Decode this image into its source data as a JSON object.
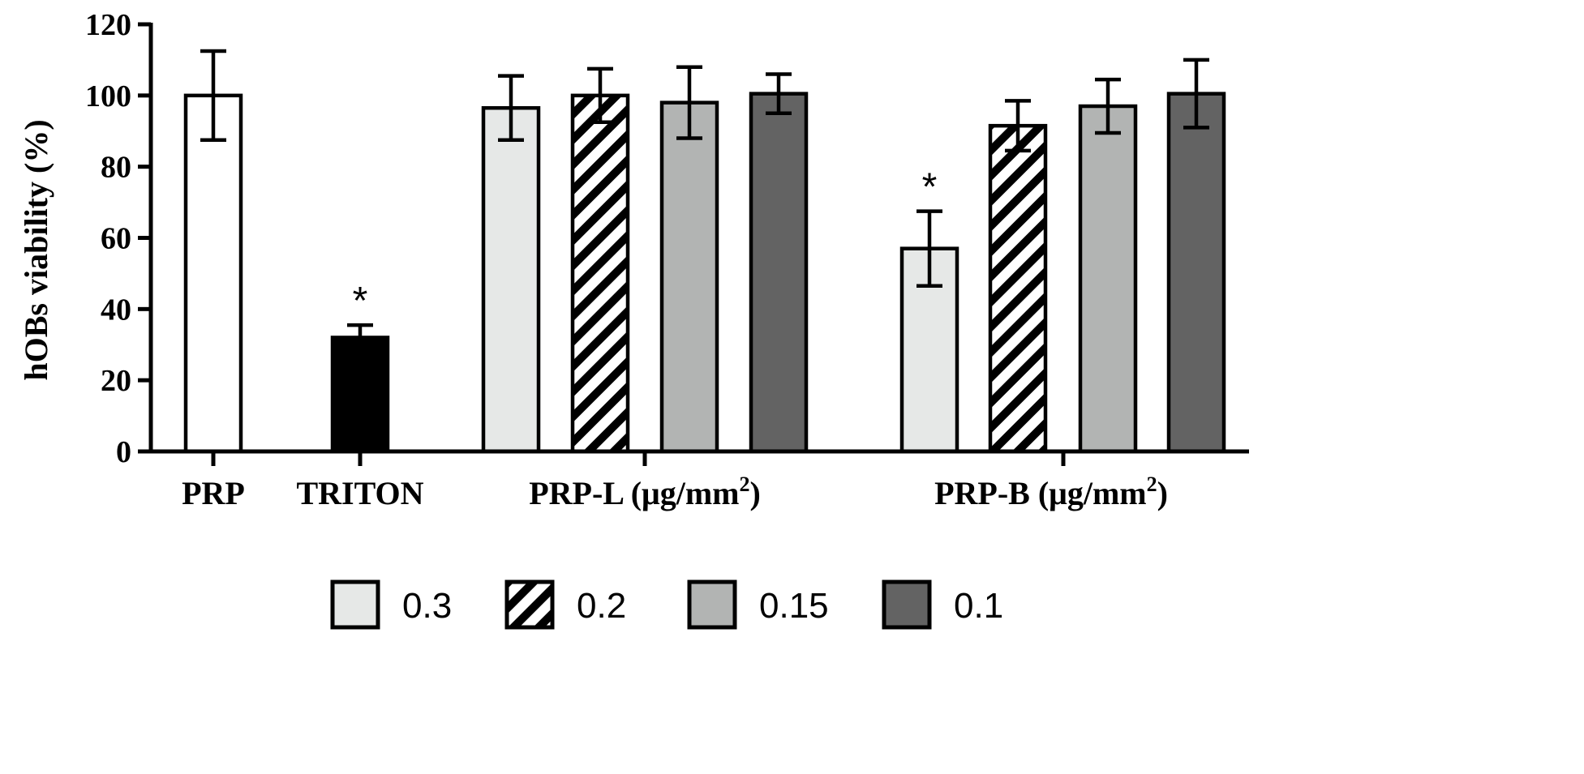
{
  "chart_data": {
    "type": "bar",
    "title": "",
    "xlabel": "",
    "ylabel": "hOBs viability (%)",
    "ylim": [
      0,
      120
    ],
    "yticks": [
      "0",
      "20",
      "40",
      "60",
      "80",
      "100",
      "120"
    ],
    "grid": false,
    "groups": [
      {
        "label": "PRP",
        "label_sup": "",
        "bars": [
          {
            "series": "PRP",
            "value": 100,
            "error": 12.5,
            "significant": false,
            "fill": "#ffffff",
            "pattern": "none"
          }
        ]
      },
      {
        "label": "TRITON",
        "label_sup": "",
        "bars": [
          {
            "series": "TRITON",
            "value": 32,
            "error": 3.5,
            "significant": true,
            "fill": "#000000",
            "pattern": "none"
          }
        ]
      },
      {
        "label": "PRP-L  (μg/mm",
        "label_sup": "2",
        "label_close": ")",
        "bars": [
          {
            "series": "0.3",
            "value": 96.5,
            "error": 9.0,
            "significant": false
          },
          {
            "series": "0.2",
            "value": 100,
            "error": 7.5,
            "significant": false
          },
          {
            "series": "0.15",
            "value": 98,
            "error": 10.0,
            "significant": false
          },
          {
            "series": "0.1",
            "value": 100.5,
            "error": 5.5,
            "significant": false
          }
        ]
      },
      {
        "label": "PRP-B (μg/mm",
        "label_sup": "2",
        "label_close": ")",
        "bars": [
          {
            "series": "0.3",
            "value": 57,
            "error": 10.5,
            "significant": true
          },
          {
            "series": "0.2",
            "value": 91.5,
            "error": 7.0,
            "significant": false
          },
          {
            "series": "0.15",
            "value": 97,
            "error": 7.5,
            "significant": false
          },
          {
            "series": "0.1",
            "value": 100.5,
            "error": 9.5,
            "significant": false
          }
        ]
      }
    ],
    "legend": {
      "position": "bottom",
      "entries": [
        {
          "label": "0.3",
          "fill": "#e6e8e7",
          "pattern": "none"
        },
        {
          "label": "0.2",
          "fill": "#ffffff",
          "pattern": "diagonal-hatch"
        },
        {
          "label": "0.15",
          "fill": "#b2b4b3",
          "pattern": "none"
        },
        {
          "label": "0.1",
          "fill": "#636363",
          "pattern": "none"
        }
      ]
    },
    "significance_marker": "*"
  }
}
